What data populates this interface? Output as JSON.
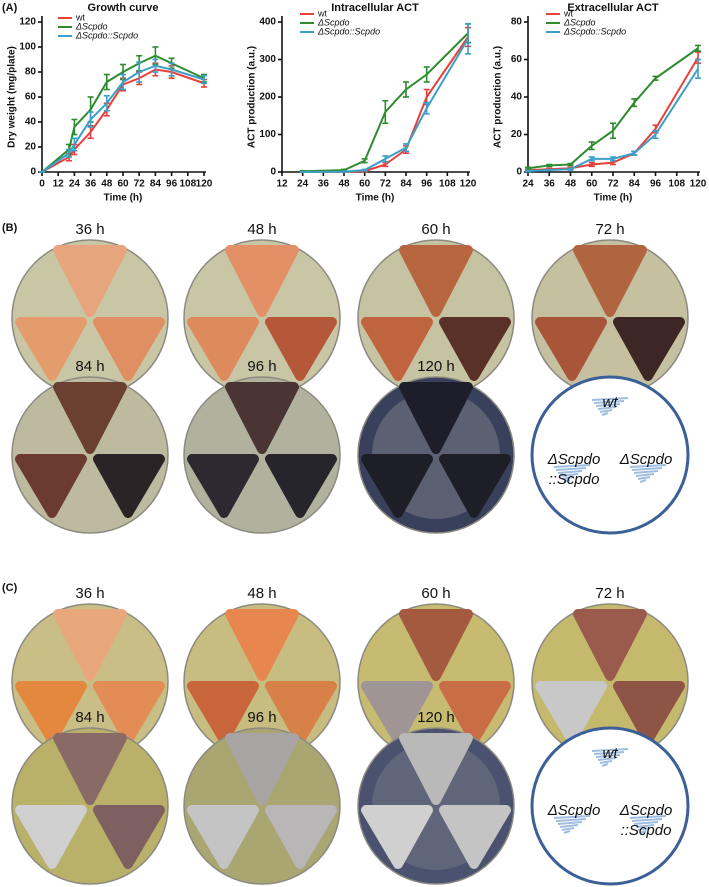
{
  "panel_a_label": "(A)",
  "chart_data": [
    {
      "type": "line",
      "title": "Growth curve",
      "x_label": "Time (h)",
      "y_label": "Dry weight (mg/plate)",
      "x": [
        0,
        20,
        24,
        36,
        48,
        60,
        72,
        84,
        96,
        120
      ],
      "xlim": [
        0,
        120
      ],
      "xticks": [
        0,
        12,
        24,
        36,
        48,
        60,
        72,
        84,
        96,
        108,
        120
      ],
      "ylim": [
        0,
        120
      ],
      "yticks": [
        0,
        20,
        40,
        60,
        80,
        100,
        120
      ],
      "series": [
        {
          "name": "wt",
          "color": "#e8403c",
          "values": [
            0,
            12,
            18,
            32,
            50,
            70,
            75,
            82,
            80,
            71
          ],
          "errors": [
            0,
            3,
            4,
            5,
            5,
            5,
            5,
            5,
            5,
            3
          ]
        },
        {
          "name": "ΔScpdo",
          "color": "#2e8b2e",
          "values": [
            0,
            18,
            36,
            50,
            72,
            80,
            87,
            93,
            87,
            75
          ],
          "errors": [
            0,
            4,
            6,
            10,
            6,
            6,
            6,
            7,
            4,
            3
          ]
        },
        {
          "name": "ΔScpdo::Scpdo",
          "color": "#3aa0c8",
          "values": [
            0,
            15,
            22,
            42,
            55,
            72,
            80,
            85,
            82,
            74
          ],
          "errors": [
            0,
            3,
            5,
            6,
            6,
            6,
            8,
            5,
            5,
            3
          ]
        }
      ]
    },
    {
      "type": "line",
      "title": "Intracellular ACT",
      "x_label": "Time (h)",
      "y_label": "ACT production (a.u.)",
      "x": [
        24,
        48,
        60,
        72,
        84,
        96,
        120
      ],
      "xlim": [
        12,
        120
      ],
      "xticks": [
        12,
        24,
        36,
        48,
        60,
        72,
        84,
        96,
        108,
        120
      ],
      "ylim": [
        0,
        400
      ],
      "yticks": [
        0,
        100,
        200,
        300,
        400
      ],
      "series": [
        {
          "name": "wt",
          "color": "#e8403c",
          "values": [
            0,
            1,
            2,
            20,
            60,
            200,
            360
          ],
          "errors": [
            0,
            1,
            1,
            5,
            10,
            20,
            25
          ]
        },
        {
          "name": "ΔScpdo",
          "color": "#2e8b2e",
          "values": [
            2,
            5,
            30,
            160,
            220,
            260,
            370
          ],
          "errors": [
            1,
            2,
            5,
            30,
            20,
            20,
            25
          ]
        },
        {
          "name": "ΔScpdo::Scpdo",
          "color": "#3aa0c8",
          "values": [
            0,
            1,
            5,
            35,
            65,
            170,
            355
          ],
          "errors": [
            0,
            1,
            2,
            8,
            10,
            15,
            40
          ]
        }
      ]
    },
    {
      "type": "line",
      "title": "Extracellular ACT",
      "x_label": "Time (h)",
      "y_label": "ACT production (a.u.)",
      "x": [
        24,
        36,
        48,
        60,
        72,
        84,
        96,
        120
      ],
      "xlim": [
        24,
        120
      ],
      "xticks": [
        24,
        36,
        48,
        60,
        72,
        84,
        96,
        108,
        120
      ],
      "ylim": [
        0,
        80
      ],
      "yticks": [
        0,
        20,
        40,
        60,
        80
      ],
      "series": [
        {
          "name": "wt",
          "color": "#e8403c",
          "values": [
            1,
            1.5,
            2,
            4,
            5,
            10,
            23,
            61
          ],
          "errors": [
            0.5,
            0.5,
            0.5,
            1,
            1,
            1,
            2,
            3
          ]
        },
        {
          "name": "ΔScpdo",
          "color": "#2e8b2e",
          "values": [
            2,
            3.5,
            4,
            14,
            22,
            37,
            50,
            66
          ],
          "errors": [
            0.5,
            0.5,
            0.5,
            2,
            4,
            2,
            1,
            1.5
          ]
        },
        {
          "name": "ΔScpdo::Scpdo",
          "color": "#3aa0c8",
          "values": [
            0.5,
            1,
            1.5,
            7,
            7,
            10,
            20,
            55
          ],
          "errors": [
            0.3,
            0.3,
            0.5,
            1,
            1,
            1,
            2,
            5
          ]
        }
      ]
    }
  ],
  "panels": [
    {
      "label": "(B)",
      "plates": [
        "36 h",
        "48 h",
        "60 h",
        "72 h",
        "84 h",
        "96 h",
        "120 h"
      ],
      "scheme": {
        "top": [
          "wt"
        ],
        "left": [
          "ΔScpdo",
          "::Scpdo"
        ],
        "right": [
          "ΔScpdo"
        ]
      }
    },
    {
      "label": "(C)",
      "plates": [
        "36 h",
        "48 h",
        "60 h",
        "72 h",
        "84 h",
        "96 h",
        "120 h"
      ],
      "scheme": {
        "top": [
          "wt"
        ],
        "left": [
          "ΔScpdo"
        ],
        "right": [
          "ΔScpdo",
          "::Scpdo"
        ]
      }
    }
  ]
}
